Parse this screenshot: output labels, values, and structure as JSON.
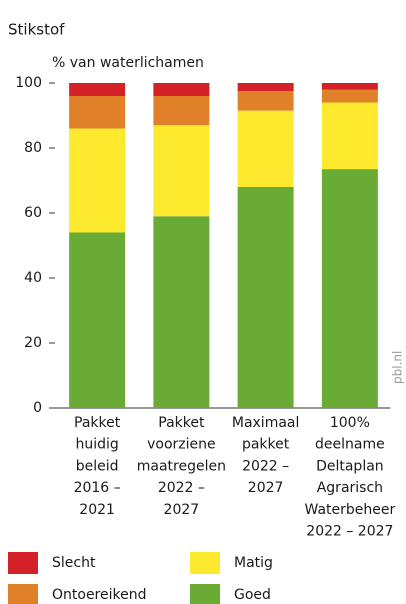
{
  "chart_data": {
    "type": "stacked-bar",
    "title": "Stikstof",
    "y_label": "% van waterlichamen",
    "source": "pbl.nl",
    "categories": [
      [
        "Pakket",
        "huidig",
        "beleid",
        "2016 –",
        "2021"
      ],
      [
        "Pakket",
        "voorziene",
        "maatregelen",
        "2022 –",
        "2027"
      ],
      [
        "Maximaal",
        "pakket",
        "2022 –",
        "2027"
      ],
      [
        "100%",
        "deelname",
        "Deltaplan",
        "Agrarisch",
        "Waterbeheer",
        "2022 – 2027"
      ]
    ],
    "series": [
      {
        "name": "Goed",
        "color": "#6aab35",
        "values": [
          54,
          59,
          68,
          73.5
        ]
      },
      {
        "name": "Matig",
        "color": "#fde92d",
        "values": [
          32,
          28,
          23.5,
          20.5
        ]
      },
      {
        "name": "Ontoereikend",
        "color": "#e0812a",
        "values": [
          10,
          9,
          6,
          4
        ]
      },
      {
        "name": "Slecht",
        "color": "#d42127",
        "values": [
          4,
          4,
          2.5,
          2
        ]
      }
    ],
    "ylim": [
      0,
      100
    ],
    "yticks": [
      0,
      20,
      40,
      60,
      80,
      100
    ]
  }
}
